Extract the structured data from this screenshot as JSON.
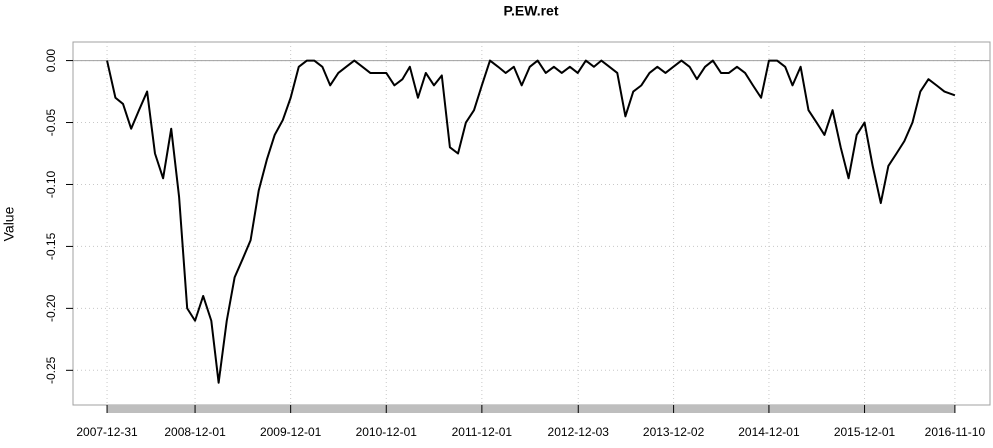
{
  "chart_data": {
    "type": "line",
    "title": "P.EW.ret",
    "y_label": "Value",
    "x": [
      "2007-12-31",
      "2008-02-01",
      "2008-03-01",
      "2008-04-01",
      "2008-05-01",
      "2008-06-01",
      "2008-07-01",
      "2008-08-01",
      "2008-09-01",
      "2008-10-01",
      "2008-11-01",
      "2008-12-01",
      "2009-01-01",
      "2009-02-01",
      "2009-03-01",
      "2009-04-01",
      "2009-05-01",
      "2009-06-01",
      "2009-07-01",
      "2009-08-01",
      "2009-09-01",
      "2009-10-01",
      "2009-11-01",
      "2009-12-01",
      "2010-01-01",
      "2010-02-01",
      "2010-03-01",
      "2010-04-01",
      "2010-05-01",
      "2010-06-01",
      "2010-07-01",
      "2010-08-01",
      "2010-09-01",
      "2010-10-01",
      "2010-11-01",
      "2010-12-01",
      "2011-01-01",
      "2011-02-01",
      "2011-03-01",
      "2011-04-01",
      "2011-05-01",
      "2011-06-01",
      "2011-07-01",
      "2011-08-01",
      "2011-09-01",
      "2011-10-01",
      "2011-11-01",
      "2011-12-01",
      "2012-01-01",
      "2012-02-01",
      "2012-03-01",
      "2012-04-01",
      "2012-05-01",
      "2012-06-01",
      "2012-07-01",
      "2012-08-01",
      "2012-09-01",
      "2012-10-01",
      "2012-11-01",
      "2012-12-01",
      "2013-01-01",
      "2013-02-01",
      "2013-03-01",
      "2013-04-01",
      "2013-05-01",
      "2013-06-01",
      "2013-07-01",
      "2013-08-01",
      "2013-09-01",
      "2013-10-01",
      "2013-11-01",
      "2013-12-01",
      "2014-01-01",
      "2014-02-01",
      "2014-03-01",
      "2014-04-01",
      "2014-05-01",
      "2014-06-01",
      "2014-07-01",
      "2014-08-01",
      "2014-09-01",
      "2014-10-01",
      "2014-11-01",
      "2014-12-01",
      "2015-01-01",
      "2015-02-01",
      "2015-03-01",
      "2015-04-01",
      "2015-05-01",
      "2015-06-01",
      "2015-07-01",
      "2015-08-01",
      "2015-09-01",
      "2015-10-01",
      "2015-11-01",
      "2015-12-01",
      "2016-01-01",
      "2016-02-01",
      "2016-03-01",
      "2016-04-01",
      "2016-05-01",
      "2016-06-01",
      "2016-07-01",
      "2016-08-01",
      "2016-09-01",
      "2016-10-01",
      "2016-11-10"
    ],
    "series": [
      {
        "color": "#000000",
        "values": [
          0,
          -0.03,
          -0.035,
          -0.055,
          -0.04,
          -0.025,
          -0.075,
          -0.095,
          -0.055,
          -0.11,
          -0.2,
          -0.21,
          -0.19,
          -0.21,
          -0.26,
          -0.21,
          -0.175,
          -0.16,
          -0.145,
          -0.105,
          -0.08,
          -0.06,
          -0.048,
          -0.03,
          -0.005,
          0,
          0,
          -0.005,
          -0.02,
          -0.01,
          -0.005,
          0,
          -0.005,
          -0.01,
          -0.01,
          -0.01,
          -0.02,
          -0.015,
          -0.005,
          -0.03,
          -0.01,
          -0.02,
          -0.012,
          -0.07,
          -0.075,
          -0.05,
          -0.04,
          -0.02,
          0,
          -0.005,
          -0.01,
          -0.005,
          -0.02,
          -0.005,
          0,
          -0.01,
          -0.005,
          -0.01,
          -0.005,
          -0.01,
          0,
          -0.005,
          0,
          -0.005,
          -0.01,
          -0.045,
          -0.025,
          -0.02,
          -0.01,
          -0.005,
          -0.01,
          -0.005,
          0,
          -0.005,
          -0.015,
          -0.005,
          0,
          -0.01,
          -0.01,
          -0.005,
          -0.01,
          -0.02,
          -0.03,
          0,
          0,
          -0.005,
          -0.02,
          -0.005,
          -0.04,
          -0.05,
          -0.06,
          -0.04,
          -0.07,
          -0.095,
          -0.06,
          -0.05,
          -0.085,
          -0.115,
          -0.085,
          -0.075,
          -0.065,
          -0.05,
          -0.025,
          -0.015,
          -0.02,
          -0.025,
          -0.028
        ]
      }
    ],
    "xlim": [
      "2007-08-23",
      "2017-03-24"
    ],
    "xticks": [
      "2007-12-31",
      "2008-12-01",
      "2009-12-01",
      "2010-12-01",
      "2011-12-01",
      "2012-12-03",
      "2013-12-02",
      "2014-12-01",
      "2015-12-01",
      "2016-11-10"
    ],
    "ylim": [
      -0.278,
      0.015
    ],
    "yticks": [
      {
        "value": 0,
        "label": "0.00"
      },
      -0.05,
      {
        "value": -0.1,
        "label": "-0.10"
      },
      -0.15,
      {
        "value": -0.2,
        "label": "-0.20"
      },
      -0.25
    ],
    "grid": true
  }
}
